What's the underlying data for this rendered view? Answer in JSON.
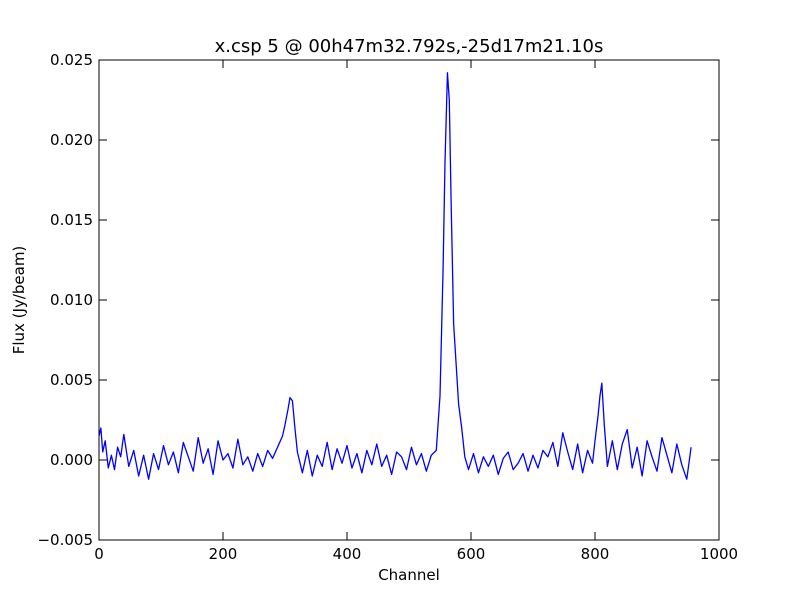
{
  "chart_data": {
    "type": "line",
    "title": "x.csp 5 @ 00h47m32.792s,-25d17m21.10s",
    "xlabel": "Channel",
    "ylabel": "Flux (Jy/beam)",
    "xlim": [
      0,
      1000
    ],
    "xticks": [
      0,
      200,
      400,
      600,
      800,
      1000
    ],
    "ylim": [
      -0.005,
      0.025
    ],
    "yticks": [
      {
        "value": -0.005,
        "label": "−0.005"
      },
      {
        "value": 0,
        "label": "0.000"
      },
      {
        "value": 0.005,
        "label": "0.005"
      },
      {
        "value": 0.01,
        "label": "0.010"
      },
      {
        "value": 0.015,
        "label": "0.015"
      },
      {
        "value": 0.02,
        "label": "0.020"
      },
      {
        "value": 0.025,
        "label": "0.025"
      }
    ],
    "grid": false,
    "series": [
      {
        "color": "#0000ff",
        "x": [
          0,
          3,
          6,
          10,
          15,
          20,
          25,
          30,
          35,
          40,
          48,
          56,
          64,
          72,
          80,
          88,
          96,
          104,
          112,
          120,
          128,
          136,
          144,
          152,
          160,
          168,
          176,
          184,
          192,
          200,
          208,
          216,
          224,
          232,
          240,
          248,
          256,
          264,
          272,
          280,
          288,
          296,
          300,
          305,
          308,
          312,
          316,
          320,
          328,
          336,
          344,
          352,
          360,
          368,
          376,
          384,
          392,
          400,
          408,
          416,
          424,
          432,
          440,
          448,
          456,
          464,
          472,
          480,
          488,
          496,
          504,
          512,
          520,
          528,
          536,
          544,
          550,
          555,
          558,
          562,
          565,
          568,
          572,
          576,
          580,
          585,
          590,
          596,
          604,
          612,
          620,
          628,
          636,
          644,
          652,
          660,
          668,
          676,
          684,
          692,
          700,
          708,
          716,
          724,
          732,
          740,
          748,
          756,
          764,
          772,
          780,
          788,
          796,
          800,
          805,
          808,
          811,
          815,
          820,
          828,
          836,
          844,
          852,
          860,
          868,
          876,
          884,
          892,
          900,
          908,
          916,
          924,
          932,
          940,
          948,
          955
        ],
        "values": [
          0.0015,
          0.002,
          0.0005,
          0.0012,
          -0.0005,
          0.0003,
          -0.0006,
          0.0008,
          0.0002,
          0.0016,
          -0.0004,
          0.0006,
          -0.001,
          0.0003,
          -0.0012,
          0.0004,
          -0.0006,
          0.0009,
          -0.0003,
          0.0005,
          -0.0008,
          0.0011,
          0.0002,
          -0.0007,
          0.0014,
          -0.0002,
          0.0007,
          -0.0009,
          0.0012,
          0,
          0.0004,
          -0.0005,
          0.0013,
          -0.0003,
          0.0002,
          -0.0007,
          0.0004,
          -0.0004,
          0.0006,
          0.0001,
          0.0008,
          0.0015,
          0.0022,
          0.0032,
          0.0039,
          0.0037,
          0.002,
          0.0005,
          -0.0008,
          0.0006,
          -0.001,
          0.0003,
          -0.0004,
          0.0011,
          -0.0006,
          0.0007,
          -0.0002,
          0.0009,
          -0.0005,
          0.0004,
          -0.0008,
          0.0006,
          -0.0003,
          0.001,
          -0.0004,
          0.0003,
          -0.0009,
          0.0005,
          0.0002,
          -0.0006,
          0.0008,
          -0.0003,
          0.0004,
          -0.0007,
          0.0003,
          0.0006,
          0.004,
          0.012,
          0.0185,
          0.0242,
          0.0225,
          0.016,
          0.0085,
          0.006,
          0.0035,
          0.002,
          0.0002,
          -0.0006,
          0.0004,
          -0.0008,
          0.0002,
          -0.0004,
          0.0003,
          -0.0009,
          0.0001,
          0.0005,
          -0.0006,
          -0.0002,
          0.0004,
          -0.0007,
          0.0003,
          -0.0005,
          0.0006,
          0.0002,
          0.0011,
          -0.0004,
          0.0017,
          0.0005,
          -0.0006,
          0.001,
          -0.0008,
          0.0006,
          -0.0002,
          0.0012,
          0.0028,
          0.004,
          0.0048,
          0.0022,
          -0.0004,
          0.0012,
          -0.0006,
          0.001,
          0.0019,
          -0.0005,
          0.0008,
          -0.001,
          0.0012,
          0.0002,
          -0.0007,
          0.0014,
          0.0003,
          -0.0008,
          0.001,
          -0.0003,
          -0.0012,
          0.0008
        ]
      }
    ]
  }
}
